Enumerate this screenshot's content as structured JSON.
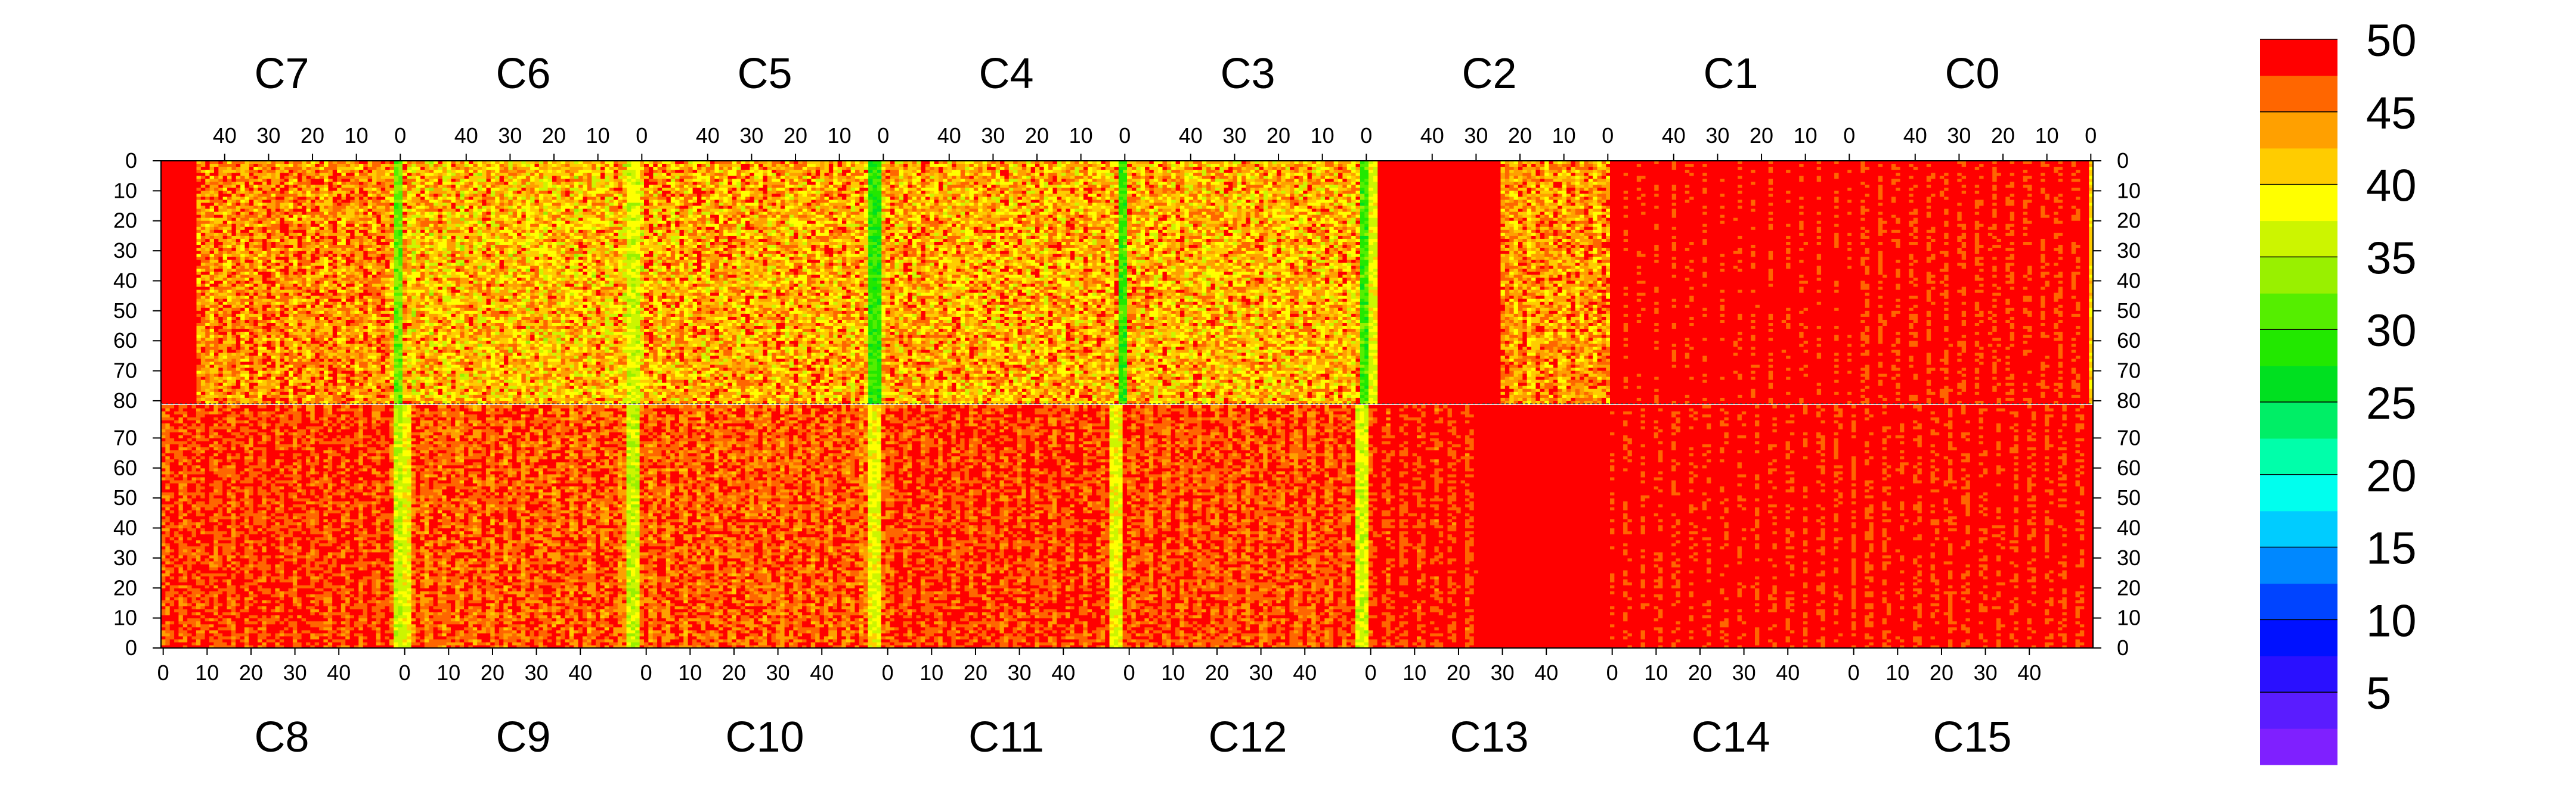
{
  "chart_data": {
    "type": "heatmap",
    "title": "",
    "xlabel": "",
    "ylabel": "",
    "top_panels": [
      "C7",
      "C6",
      "C5",
      "C4",
      "C3",
      "C2",
      "C1",
      "C0"
    ],
    "bottom_panels": [
      "C8",
      "C9",
      "C10",
      "C11",
      "C12",
      "C13",
      "C14",
      "C15"
    ],
    "x_ticks": [
      0,
      10,
      20,
      30,
      40
    ],
    "x_range": [
      0,
      54
    ],
    "top_x_direction": "descending",
    "bottom_x_direction": "ascending",
    "y_ticks": [
      0,
      10,
      20,
      30,
      40,
      50,
      60,
      70,
      80
    ],
    "y_range": [
      0,
      80
    ],
    "top_y_direction": "0 at top, increasing downward",
    "bottom_y_direction": "0 at bottom, increasing upward",
    "color_scale": {
      "min": 0,
      "max": 50,
      "ticks": [
        5,
        10,
        15,
        20,
        25,
        30,
        35,
        40,
        45,
        50
      ],
      "levels": [
        {
          "from": 0,
          "to": 2.5,
          "color": "#7F20FF"
        },
        {
          "from": 2.5,
          "to": 5,
          "color": "#5A1CFF"
        },
        {
          "from": 5,
          "to": 7.5,
          "color": "#2A10FF"
        },
        {
          "from": 7.5,
          "to": 10,
          "color": "#0011FF"
        },
        {
          "from": 10,
          "to": 12.5,
          "color": "#0044FF"
        },
        {
          "from": 12.5,
          "to": 15,
          "color": "#0088FF"
        },
        {
          "from": 15,
          "to": 17.5,
          "color": "#00CCFF"
        },
        {
          "from": 17.5,
          "to": 20,
          "color": "#00FFEE"
        },
        {
          "from": 20,
          "to": 22.5,
          "color": "#00FFAA"
        },
        {
          "from": 22.5,
          "to": 25,
          "color": "#00EE66"
        },
        {
          "from": 25,
          "to": 27.5,
          "color": "#00E020"
        },
        {
          "from": 27.5,
          "to": 30,
          "color": "#22E800"
        },
        {
          "from": 30,
          "to": 32.5,
          "color": "#55EE00"
        },
        {
          "from": 32.5,
          "to": 35,
          "color": "#99F000"
        },
        {
          "from": 35,
          "to": 37.5,
          "color": "#CCF500"
        },
        {
          "from": 37.5,
          "to": 40,
          "color": "#FFFF00"
        },
        {
          "from": 40,
          "to": 42.5,
          "color": "#FFCC00"
        },
        {
          "from": 42.5,
          "to": 45,
          "color": "#FFA000"
        },
        {
          "from": 45,
          "to": 47.5,
          "color": "#FF6600"
        },
        {
          "from": 47.5,
          "to": 50,
          "color": "#FF0000"
        }
      ]
    },
    "panel_profiles": {
      "C7": {
        "base": 44.5,
        "noise": 5,
        "edge_high_x": 47,
        "low_band_x": 0,
        "low_band_value": 32
      },
      "C6": {
        "base": 42.0,
        "noise": 6,
        "low_band_x": 2,
        "low_band_value": 37
      },
      "C5": {
        "base": 43.0,
        "noise": 6,
        "low_band_x": 2,
        "low_band_value": 29
      },
      "C4": {
        "base": 43.0,
        "noise": 6,
        "low_band_x": 0,
        "low_band_value": 30
      },
      "C3": {
        "base": 42.5,
        "noise": 6,
        "low_band_x": 0,
        "low_band_value": 30
      },
      "C2": {
        "base": 44.0,
        "noise": 5,
        "saturated_from_x": 25,
        "low_band_x": 54,
        "low_band_value": 38
      },
      "C1": {
        "base": 49.5,
        "noise": 1.5
      },
      "C0": {
        "base": 49.0,
        "noise": 2,
        "edge_low_x": 0,
        "edge_low_value": 41
      },
      "C8": {
        "base": 47.5,
        "noise": 3,
        "low_band_x": 54,
        "low_band_value": 36
      },
      "C9": {
        "base": 46.5,
        "noise": 3.5,
        "low_band_x": 0,
        "low_band_value": 38,
        "low_band2_x": 52,
        "low_band2_value": 36
      },
      "C10": {
        "base": 46.5,
        "noise": 3.5,
        "low_band_x": 52,
        "low_band_value": 38
      },
      "C11": {
        "base": 47.5,
        "noise": 3,
        "low_band_x": 52,
        "low_band_value": 38
      },
      "C12": {
        "base": 47.0,
        "noise": 3,
        "low_band_x": 53,
        "low_band_value": 37
      },
      "C13": {
        "base": 48.5,
        "noise": 2.5,
        "saturated_from_x": 25
      },
      "C14": {
        "base": 49.3,
        "noise": 2
      },
      "C15": {
        "base": 49.0,
        "noise": 2
      }
    }
  }
}
